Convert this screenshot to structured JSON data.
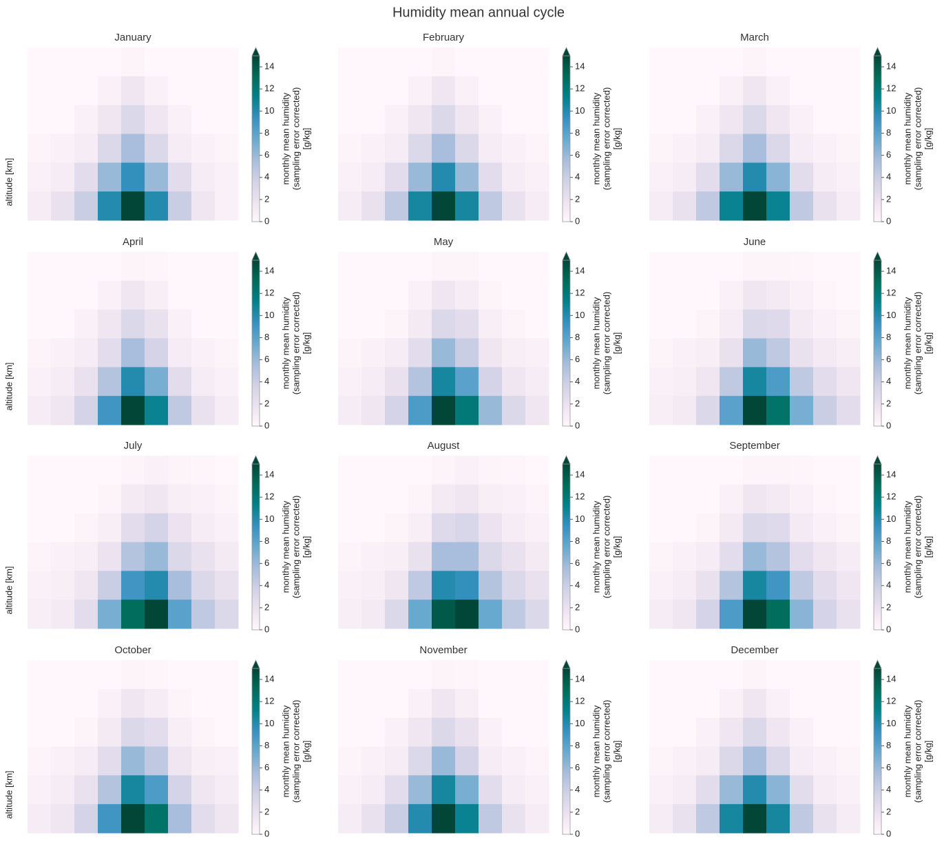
{
  "title": "Humidity mean annual cycle",
  "colormap": [
    "#fff7fb",
    "#ece2f0",
    "#d0d1e6",
    "#a6bddb",
    "#67a9cf",
    "#3690c0",
    "#02818a",
    "#016c59",
    "#014636"
  ],
  "chart_data": [
    {
      "type": "heatmap",
      "title": "January",
      "ylabel": "altitude  [km]",
      "colorbar_label": [
        "monthly mean humidity",
        "(sampling error corrected)",
        "[g/kg]"
      ],
      "clim": [
        0,
        15
      ],
      "cticks": [
        0,
        2,
        4,
        6,
        8,
        10,
        12,
        14
      ],
      "z": [
        [
          0,
          0,
          0,
          0,
          0.3,
          0,
          0,
          0,
          0
        ],
        [
          0,
          0,
          0,
          0.5,
          1.5,
          0.5,
          0,
          0,
          0
        ],
        [
          0,
          0,
          0.5,
          1.5,
          3,
          1.5,
          0.5,
          0,
          0
        ],
        [
          0.3,
          0.5,
          1,
          3,
          5.5,
          3,
          1,
          0.5,
          0.3
        ],
        [
          0.5,
          1,
          2.5,
          6,
          9.5,
          6,
          2.5,
          1,
          0.5
        ],
        [
          1,
          2,
          4,
          10,
          15,
          10,
          4,
          1.5,
          0.5
        ]
      ]
    },
    {
      "type": "heatmap",
      "title": "February",
      "colorbar_label": [
        "monthly mean humidity",
        "(sampling error corrected)",
        "[g/kg]"
      ],
      "clim": [
        0,
        15
      ],
      "cticks": [
        0,
        2,
        4,
        6,
        8,
        10,
        12,
        14
      ],
      "z": [
        [
          0,
          0,
          0,
          0,
          0.3,
          0,
          0,
          0,
          0
        ],
        [
          0,
          0,
          0,
          0.5,
          1.5,
          0.5,
          0,
          0,
          0
        ],
        [
          0,
          0,
          0.5,
          1.5,
          3,
          1.5,
          0.5,
          0,
          0
        ],
        [
          0.3,
          0.5,
          1,
          3,
          5.5,
          3,
          1,
          0.5,
          0.3
        ],
        [
          0.5,
          1,
          2.5,
          6,
          10,
          6,
          2.5,
          1,
          0.5
        ],
        [
          1,
          2,
          4.5,
          10.5,
          15,
          10.5,
          4.5,
          2,
          1
        ]
      ]
    },
    {
      "type": "heatmap",
      "title": "March",
      "colorbar_label": [
        "monthly mean humidity",
        "(sampling error corrected)",
        "[g/kg]"
      ],
      "clim": [
        0,
        15
      ],
      "cticks": [
        0,
        2,
        4,
        6,
        8,
        10,
        12,
        14
      ],
      "z": [
        [
          0,
          0,
          0,
          0,
          0.3,
          0,
          0,
          0,
          0
        ],
        [
          0,
          0,
          0,
          0.5,
          1.5,
          0.5,
          0,
          0,
          0
        ],
        [
          0,
          0,
          0.5,
          1.5,
          3,
          1.5,
          0.5,
          0,
          0
        ],
        [
          0.3,
          0.5,
          1,
          3,
          5.5,
          3,
          1,
          0.5,
          0.3
        ],
        [
          0.5,
          1,
          2.5,
          6,
          10,
          6.5,
          2.5,
          1,
          0.5
        ],
        [
          1,
          2,
          4.5,
          11,
          15,
          11,
          4.5,
          2,
          1
        ]
      ]
    },
    {
      "type": "heatmap",
      "title": "April",
      "ylabel": "altitude  [km]",
      "colorbar_label": [
        "monthly mean humidity",
        "(sampling error corrected)",
        "[g/kg]"
      ],
      "clim": [
        0,
        15
      ],
      "cticks": [
        0,
        2,
        4,
        6,
        8,
        10,
        12,
        14
      ],
      "z": [
        [
          0,
          0,
          0,
          0,
          0.3,
          0.2,
          0,
          0,
          0
        ],
        [
          0,
          0,
          0,
          0.5,
          1.5,
          0.8,
          0,
          0,
          0
        ],
        [
          0,
          0,
          0.5,
          1.5,
          3,
          2,
          0.5,
          0,
          0
        ],
        [
          0.3,
          0.5,
          1,
          2.5,
          5.5,
          3.5,
          1,
          0.5,
          0.3
        ],
        [
          0.5,
          1,
          2,
          5,
          10,
          7,
          2.5,
          1,
          0.5
        ],
        [
          1,
          1.5,
          3.5,
          9,
          15,
          11,
          4.5,
          2,
          1
        ]
      ]
    },
    {
      "type": "heatmap",
      "title": "May",
      "colorbar_label": [
        "monthly mean humidity",
        "(sampling error corrected)",
        "[g/kg]"
      ],
      "clim": [
        0,
        15
      ],
      "cticks": [
        0,
        2,
        4,
        6,
        8,
        10,
        12,
        14
      ],
      "z": [
        [
          0,
          0,
          0,
          0,
          0.3,
          0.3,
          0,
          0,
          0
        ],
        [
          0,
          0,
          0,
          0.5,
          1.5,
          1,
          0.3,
          0,
          0
        ],
        [
          0,
          0,
          0.3,
          1.2,
          3,
          2.5,
          0.8,
          0.3,
          0
        ],
        [
          0.3,
          0.5,
          1,
          2.5,
          6,
          4,
          1.5,
          0.8,
          0.5
        ],
        [
          0.5,
          1,
          2,
          5,
          10.5,
          8,
          3.5,
          1.5,
          1
        ],
        [
          1,
          1.5,
          3.5,
          8.5,
          15,
          12,
          6,
          3,
          1.5
        ]
      ]
    },
    {
      "type": "heatmap",
      "title": "June",
      "colorbar_label": [
        "monthly mean humidity",
        "(sampling error corrected)",
        "[g/kg]"
      ],
      "clim": [
        0,
        15
      ],
      "cticks": [
        0,
        2,
        4,
        6,
        8,
        10,
        12,
        14
      ],
      "z": [
        [
          0,
          0,
          0,
          0,
          0.3,
          0.3,
          0.2,
          0,
          0
        ],
        [
          0,
          0,
          0,
          0.5,
          1.5,
          1.2,
          0.5,
          0.2,
          0
        ],
        [
          0,
          0,
          0.3,
          1,
          3,
          2.8,
          1.2,
          0.5,
          0.3
        ],
        [
          0.3,
          0.5,
          0.8,
          2,
          6,
          4.5,
          2,
          1.2,
          0.8
        ],
        [
          0.5,
          0.8,
          1.5,
          4.5,
          10.5,
          8.5,
          4.5,
          2.5,
          1.5
        ],
        [
          0.8,
          1.2,
          3,
          8,
          15,
          12.5,
          7,
          4,
          2.5
        ]
      ]
    },
    {
      "type": "heatmap",
      "title": "July",
      "ylabel": "altitude  [km]",
      "colorbar_label": [
        "monthly mean humidity",
        "(sampling error corrected)",
        "[g/kg]"
      ],
      "clim": [
        0,
        15
      ],
      "cticks": [
        0,
        2,
        4,
        6,
        8,
        10,
        12,
        14
      ],
      "z": [
        [
          0,
          0,
          0,
          0,
          0.3,
          0.5,
          0.3,
          0.2,
          0
        ],
        [
          0,
          0,
          0,
          0.3,
          1.2,
          1.5,
          0.8,
          0.5,
          0.3
        ],
        [
          0,
          0,
          0.3,
          0.8,
          2.5,
          3.5,
          1.8,
          1,
          0.5
        ],
        [
          0.3,
          0.5,
          0.8,
          1.8,
          5,
          6,
          3,
          2,
          1.2
        ],
        [
          0.5,
          0.8,
          1.5,
          4,
          9,
          10,
          5.5,
          3,
          2
        ],
        [
          0.8,
          1.2,
          2.5,
          7,
          13,
          15,
          8,
          4.5,
          3
        ]
      ]
    },
    {
      "type": "heatmap",
      "title": "August",
      "colorbar_label": [
        "monthly mean humidity",
        "(sampling error corrected)",
        "[g/kg]"
      ],
      "clim": [
        0,
        15
      ],
      "cticks": [
        0,
        2,
        4,
        6,
        8,
        10,
        12,
        14
      ],
      "z": [
        [
          0,
          0,
          0,
          0,
          0.3,
          0.5,
          0.3,
          0.2,
          0
        ],
        [
          0,
          0,
          0,
          0.3,
          1.2,
          1.5,
          0.8,
          0.5,
          0.3
        ],
        [
          0,
          0,
          0.3,
          0.8,
          2.8,
          3.2,
          1.8,
          1,
          0.5
        ],
        [
          0.3,
          0.5,
          0.8,
          2,
          5.5,
          5.5,
          3,
          2,
          1.2
        ],
        [
          0.5,
          0.8,
          1.5,
          4.5,
          10,
          9.5,
          5,
          3,
          2
        ],
        [
          0.8,
          1.2,
          3,
          7.5,
          14,
          15,
          7.5,
          4.5,
          3
        ]
      ]
    },
    {
      "type": "heatmap",
      "title": "September",
      "colorbar_label": [
        "monthly mean humidity",
        "(sampling error corrected)",
        "[g/kg]"
      ],
      "clim": [
        0,
        15
      ],
      "cticks": [
        0,
        2,
        4,
        6,
        8,
        10,
        12,
        14
      ],
      "z": [
        [
          0,
          0,
          0,
          0,
          0.3,
          0.3,
          0.2,
          0,
          0
        ],
        [
          0,
          0,
          0,
          0.5,
          1.5,
          1.2,
          0.5,
          0.2,
          0
        ],
        [
          0,
          0,
          0.3,
          1.2,
          3,
          2.8,
          1.2,
          0.5,
          0.3
        ],
        [
          0.3,
          0.5,
          1,
          2.5,
          6,
          5,
          2.5,
          1.5,
          1
        ],
        [
          0.5,
          1,
          2,
          5,
          10.5,
          9,
          4.5,
          2.5,
          1.5
        ],
        [
          1,
          1.5,
          3.5,
          8.5,
          15,
          13,
          6.5,
          3.5,
          2
        ]
      ]
    },
    {
      "type": "heatmap",
      "title": "October",
      "ylabel": "altitude  [km]",
      "colorbar_label": [
        "monthly mean humidity",
        "(sampling error corrected)",
        "[g/kg]"
      ],
      "clim": [
        0,
        15
      ],
      "cticks": [
        0,
        2,
        4,
        6,
        8,
        10,
        12,
        14
      ],
      "z": [
        [
          0,
          0,
          0,
          0,
          0.3,
          0.2,
          0,
          0,
          0
        ],
        [
          0,
          0,
          0,
          0.5,
          1.5,
          1,
          0.3,
          0,
          0
        ],
        [
          0,
          0,
          0.3,
          1.2,
          3,
          2.5,
          0.8,
          0.3,
          0
        ],
        [
          0.3,
          0.5,
          1,
          2.5,
          6,
          4.5,
          1.5,
          0.8,
          0.5
        ],
        [
          0.5,
          1,
          2,
          5,
          10.5,
          8.5,
          3.5,
          1.5,
          1
        ],
        [
          1,
          1.5,
          3.5,
          9,
          15,
          12.5,
          5.5,
          2.5,
          1.5
        ]
      ]
    },
    {
      "type": "heatmap",
      "title": "November",
      "colorbar_label": [
        "monthly mean humidity",
        "(sampling error corrected)",
        "[g/kg]"
      ],
      "clim": [
        0,
        15
      ],
      "cticks": [
        0,
        2,
        4,
        6,
        8,
        10,
        12,
        14
      ],
      "z": [
        [
          0,
          0,
          0,
          0,
          0.3,
          0.2,
          0,
          0,
          0
        ],
        [
          0,
          0,
          0,
          0.5,
          1.5,
          0.8,
          0,
          0,
          0
        ],
        [
          0,
          0,
          0.5,
          1.5,
          3,
          2,
          0.5,
          0,
          0
        ],
        [
          0.3,
          0.5,
          1,
          3,
          6,
          3.5,
          1,
          0.5,
          0.3
        ],
        [
          0.5,
          1,
          2.5,
          6,
          10.5,
          7,
          2.5,
          1,
          0.5
        ],
        [
          1,
          2,
          4,
          10,
          15,
          11,
          4.5,
          2,
          1
        ]
      ]
    },
    {
      "type": "heatmap",
      "title": "December",
      "colorbar_label": [
        "monthly mean humidity",
        "(sampling error corrected)",
        "[g/kg]"
      ],
      "clim": [
        0,
        15
      ],
      "cticks": [
        0,
        2,
        4,
        6,
        8,
        10,
        12,
        14
      ],
      "z": [
        [
          0,
          0,
          0,
          0,
          0.3,
          0,
          0,
          0,
          0
        ],
        [
          0,
          0,
          0,
          0.5,
          1.5,
          0.5,
          0,
          0,
          0
        ],
        [
          0,
          0,
          0.5,
          1.5,
          3,
          1.5,
          0.5,
          0,
          0
        ],
        [
          0.3,
          0.5,
          1,
          3,
          5.5,
          3,
          1,
          0.5,
          0.3
        ],
        [
          0.5,
          1,
          2.5,
          6,
          10,
          6.5,
          2.5,
          1,
          0.5
        ],
        [
          1,
          2,
          4.5,
          10.5,
          15,
          10.5,
          4.5,
          2,
          1
        ]
      ]
    }
  ]
}
